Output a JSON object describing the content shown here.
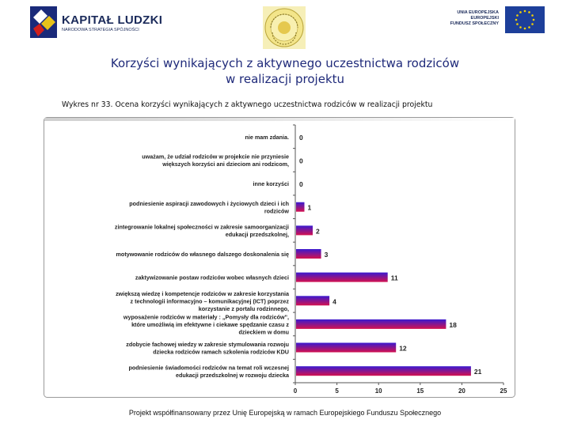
{
  "header": {
    "logo_left": {
      "title": "KAPITAŁ LUDZKI",
      "subtitle": "NARODOWA STRATEGIA SPÓJNOŚCI"
    },
    "logo_center": {
      "text": ""
    },
    "logo_right": {
      "lines": [
        "UNIA EUROPEJSKA",
        "EUROPEJSKI",
        "FUNDUSZ SPOŁECZNY"
      ]
    }
  },
  "page_title": {
    "line1": "Korzyści wynikających z aktywnego uczestnictwa rodziców",
    "line2": "w realizacji projektu"
  },
  "figure_caption": "Wykres nr 33. Ocena korzyści wynikających z aktywnego uczestnictwa rodziców w realizacji projektu",
  "footer": "Projekt współfinansowany przez Unię Europejską w ramach Europejskiego Funduszu Społecznego",
  "colors": {
    "bar_top": "#3a1ad0",
    "bar_bottom": "#d4114e",
    "title": "#1f2a7a"
  },
  "chart_data": {
    "type": "bar",
    "orientation": "horizontal",
    "categories": [
      [
        "nie mam zdania."
      ],
      [
        "uważam, że udział rodziców w projekcie nie przyniesie",
        "większych korzyści ani dzieciom ani rodzicom,"
      ],
      [
        "inne korzyści"
      ],
      [
        "podniesienie aspiracji zawodowych i życiowych dzieci i ich",
        "rodziców"
      ],
      [
        "zintegrowanie lokalnej społeczności w zakresie samoorganizacji",
        "edukacji przedszkolnej,"
      ],
      [
        "motywowanie rodziców do własnego dalszego doskonalenia się"
      ],
      [
        "zaktywizowanie postaw rodziców wobec własnych dzieci"
      ],
      [
        "zwiększą wiedzę i kompetencje rodziców w zakresie korzystania",
        "z technologii informacyjno – komunikacyjnej (ICT) poprzez",
        "korzystanie z portalu rodzinnego,"
      ],
      [
        "wyposażenie rodziców w materiały : „Pomysły dla rodziców\",",
        "które umożliwią im efektywne i ciekawe spędzanie czasu z",
        "dzieckiem w domu"
      ],
      [
        "zdobycie fachowej wiedzy w zakresie stymulowania rozwoju",
        "dziecka rodziców ramach szkolenia rodziców KDU"
      ],
      [
        "podniesienie świadomości rodziców na temat roli wczesnej",
        "edukacji przedszkolnej w rozwoju dziecka"
      ]
    ],
    "values": [
      0,
      0,
      0,
      1,
      2,
      3,
      11,
      4,
      18,
      12,
      21
    ],
    "x_ticks": [
      "0",
      "5",
      "10",
      "15",
      "20",
      "25"
    ],
    "xlim": [
      0,
      25
    ],
    "grid": false,
    "legend": "none"
  }
}
